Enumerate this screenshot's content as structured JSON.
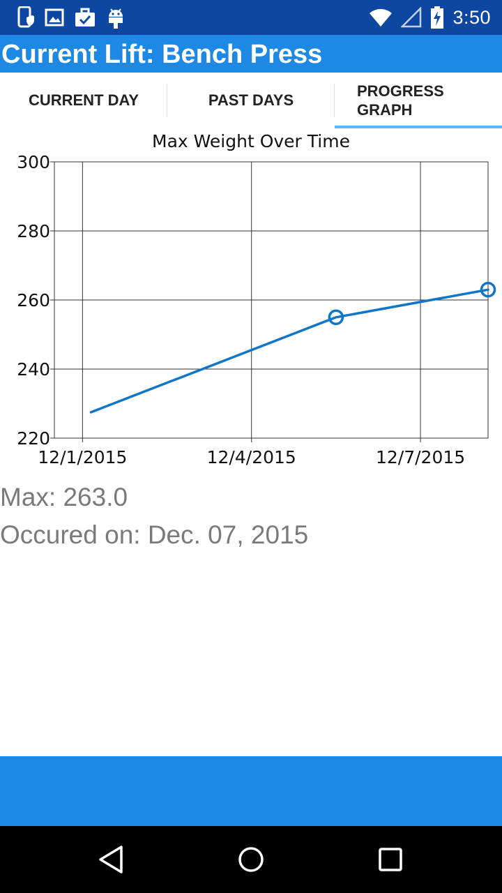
{
  "status_bar": {
    "time": "3:50",
    "left_icons": [
      "phone-shield-icon",
      "image-icon",
      "briefcase-check-icon",
      "android-icon"
    ],
    "right_icons": [
      "wifi-icon",
      "signal-icon",
      "battery-charging-icon"
    ]
  },
  "app_bar": {
    "title": "Current Lift: Bench Press",
    "color": "#1e88e5"
  },
  "tabs": [
    {
      "label": "CURRENT DAY",
      "selected": false
    },
    {
      "label": "PAST DAYS",
      "selected": false
    },
    {
      "label": "PROGRESS GRAPH",
      "line1": "PROGRESS",
      "line2": "GRAPH",
      "selected": true
    }
  ],
  "chart_data": {
    "type": "line",
    "title": "Max Weight Over Time",
    "xlabel": "",
    "ylabel": "",
    "x_tick_labels": [
      "12/1/2015",
      "12/4/2015",
      "12/7/2015"
    ],
    "x_ticks_days": [
      1,
      4,
      7
    ],
    "xlim_days": [
      0.5,
      8.2
    ],
    "ylim": [
      220,
      300
    ],
    "y_ticks": [
      220,
      240,
      260,
      280,
      300
    ],
    "grid": true,
    "series": [
      {
        "color": "#0f76c9",
        "points": [
          {
            "x_day": 1.15,
            "y": 227.5,
            "marker": false
          },
          {
            "x_day": 5.5,
            "y": 255,
            "marker": true
          },
          {
            "x_day": 8.2,
            "y": 263,
            "marker": true
          }
        ]
      }
    ]
  },
  "summary": {
    "max_text": "Max: 263.0",
    "date_text": "Occured on: Dec. 07, 2015"
  },
  "nav_bar": {
    "icons": [
      "back-icon",
      "home-icon",
      "recents-icon"
    ]
  }
}
